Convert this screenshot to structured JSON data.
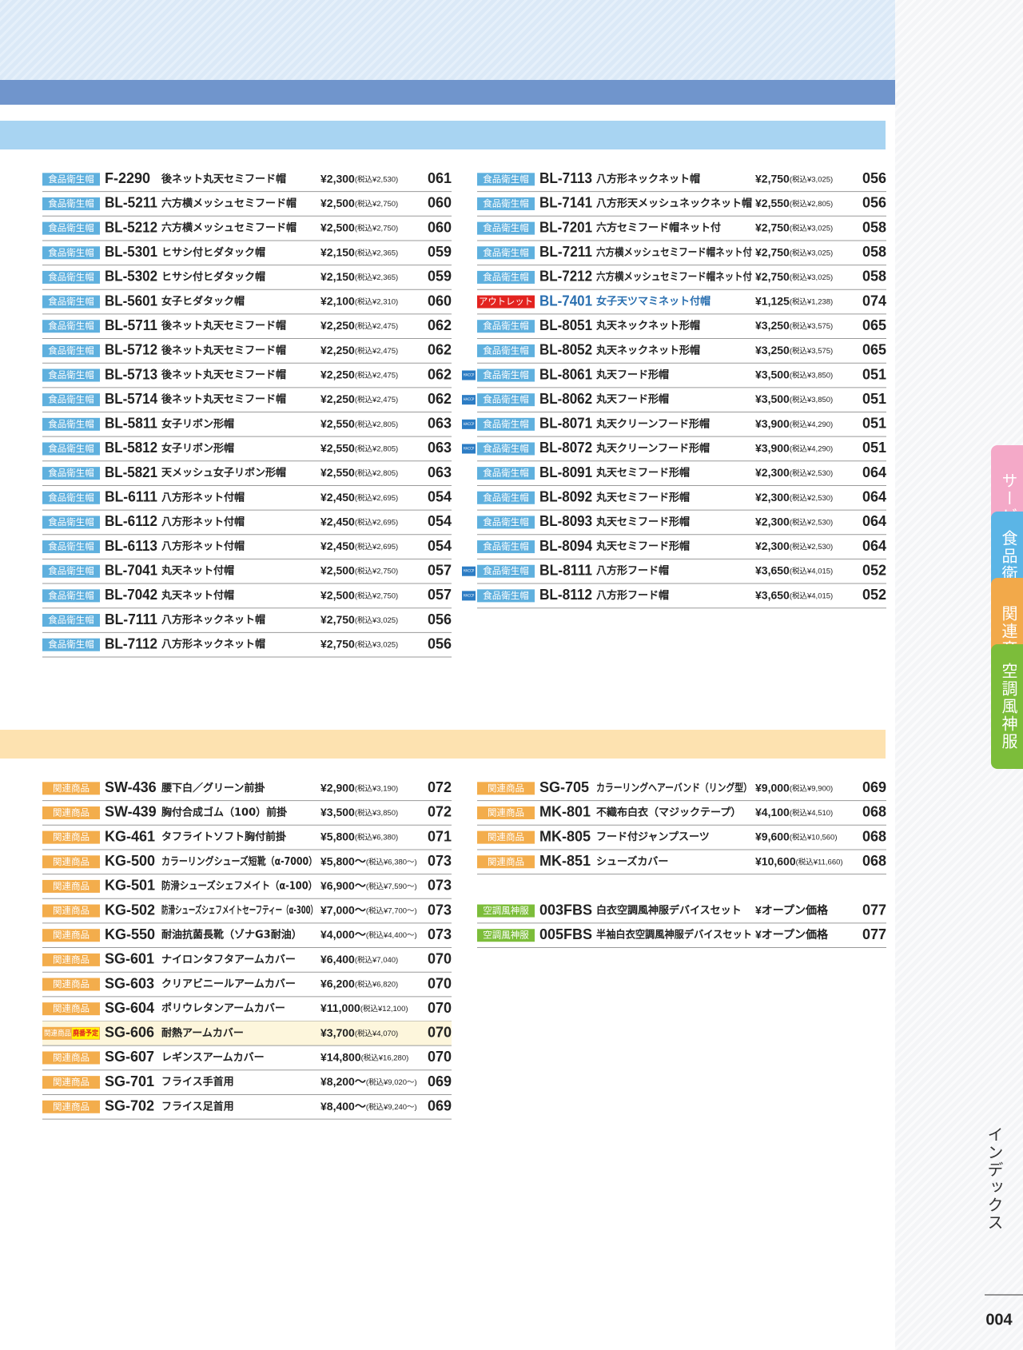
{
  "side_tabs": [
    {
      "label": "サービス",
      "color": "#f4a9c8"
    },
    {
      "label": "食品衛生帽",
      "color": "#5bb5e6"
    },
    {
      "label": "関連商品",
      "color": "#f2a94a"
    },
    {
      "label": "空調風神服",
      "color": "#7cbd3a"
    }
  ],
  "index_label": "インデックス",
  "page_number": "004",
  "sections": [
    {
      "header_color": "#a8d4f2",
      "tag_color": "#5fb0de",
      "columns": [
        [
          [
            {
              "tag": "食品衛生帽",
              "code": "F-2290",
              "name": "後ネット丸天セミフード帽",
              "price": "¥2,300",
              "tax": "(税込¥2,530)",
              "page": "061"
            },
            {
              "tag": "食品衛生帽",
              "code": "BL-5211",
              "name": "六方横メッシュセミフード帽",
              "price": "¥2,500",
              "tax": "(税込¥2,750)",
              "page": "060"
            },
            {
              "tag": "食品衛生帽",
              "code": "BL-5212",
              "name": "六方横メッシュセミフード帽",
              "price": "¥2,500",
              "tax": "(税込¥2,750)",
              "page": "060"
            },
            {
              "tag": "食品衛生帽",
              "code": "BL-5301",
              "name": "ヒサシ付ヒダタック帽",
              "price": "¥2,150",
              "tax": "(税込¥2,365)",
              "page": "059"
            },
            {
              "tag": "食品衛生帽",
              "code": "BL-5302",
              "name": "ヒサシ付ヒダタック帽",
              "price": "¥2,150",
              "tax": "(税込¥2,365)",
              "page": "059"
            },
            {
              "tag": "食品衛生帽",
              "code": "BL-5601",
              "name": "女子ヒダタック帽",
              "price": "¥2,100",
              "tax": "(税込¥2,310)",
              "page": "060"
            },
            {
              "tag": "食品衛生帽",
              "code": "BL-5711",
              "name": "後ネット丸天セミフード帽",
              "price": "¥2,250",
              "tax": "(税込¥2,475)",
              "page": "062"
            },
            {
              "tag": "食品衛生帽",
              "code": "BL-5712",
              "name": "後ネット丸天セミフード帽",
              "price": "¥2,250",
              "tax": "(税込¥2,475)",
              "page": "062"
            },
            {
              "tag": "食品衛生帽",
              "code": "BL-5713",
              "name": "後ネット丸天セミフード帽",
              "price": "¥2,250",
              "tax": "(税込¥2,475)",
              "page": "062"
            },
            {
              "tag": "食品衛生帽",
              "code": "BL-5714",
              "name": "後ネット丸天セミフード帽",
              "price": "¥2,250",
              "tax": "(税込¥2,475)",
              "page": "062"
            },
            {
              "tag": "食品衛生帽",
              "code": "BL-5811",
              "name": "女子リボン形帽",
              "price": "¥2,550",
              "tax": "(税込¥2,805)",
              "page": "063"
            },
            {
              "tag": "食品衛生帽",
              "code": "BL-5812",
              "name": "女子リボン形帽",
              "price": "¥2,550",
              "tax": "(税込¥2,805)",
              "page": "063"
            },
            {
              "tag": "食品衛生帽",
              "code": "BL-5821",
              "name": "天メッシュ女子リボン形帽",
              "price": "¥2,550",
              "tax": "(税込¥2,805)",
              "page": "063"
            },
            {
              "tag": "食品衛生帽",
              "code": "BL-6111",
              "name": "八方形ネット付帽",
              "price": "¥2,450",
              "tax": "(税込¥2,695)",
              "page": "054"
            },
            {
              "tag": "食品衛生帽",
              "code": "BL-6112",
              "name": "八方形ネット付帽",
              "price": "¥2,450",
              "tax": "(税込¥2,695)",
              "page": "054"
            },
            {
              "tag": "食品衛生帽",
              "code": "BL-6113",
              "name": "八方形ネット付帽",
              "price": "¥2,450",
              "tax": "(税込¥2,695)",
              "page": "054"
            },
            {
              "tag": "食品衛生帽",
              "code": "BL-7041",
              "name": "丸天ネット付帽",
              "price": "¥2,500",
              "tax": "(税込¥2,750)",
              "page": "057"
            },
            {
              "tag": "食品衛生帽",
              "code": "BL-7042",
              "name": "丸天ネット付帽",
              "price": "¥2,500",
              "tax": "(税込¥2,750)",
              "page": "057"
            },
            {
              "tag": "食品衛生帽",
              "code": "BL-7111",
              "name": "八方形ネックネット帽",
              "price": "¥2,750",
              "tax": "(税込¥3,025)",
              "page": "056"
            },
            {
              "tag": "食品衛生帽",
              "code": "BL-7112",
              "name": "八方形ネックネット帽",
              "price": "¥2,750",
              "tax": "(税込¥3,025)",
              "page": "056"
            }
          ]
        ],
        [
          [
            {
              "tag": "食品衛生帽",
              "code": "BL-7113",
              "name": "八方形ネックネット帽",
              "price": "¥2,750",
              "tax": "(税込¥3,025)",
              "page": "056"
            },
            {
              "tag": "食品衛生帽",
              "code": "BL-7141",
              "name": "八方形天メッシュネックネット帽",
              "price": "¥2,550",
              "tax": "(税込¥2,805)",
              "page": "056"
            },
            {
              "tag": "食品衛生帽",
              "code": "BL-7201",
              "name": "六方セミフード帽ネット付",
              "price": "¥2,750",
              "tax": "(税込¥3,025)",
              "page": "058"
            },
            {
              "tag": "食品衛生帽",
              "code": "BL-7211",
              "name": "六方横メッシュセミフード帽ネット付",
              "price": "¥2,750",
              "tax": "(税込¥3,025)",
              "page": "058"
            },
            {
              "tag": "食品衛生帽",
              "code": "BL-7212",
              "name": "六方横メッシュセミフード帽ネット付",
              "price": "¥2,750",
              "tax": "(税込¥3,025)",
              "page": "058"
            },
            {
              "tag": "アウトレット",
              "tag_color": "#e3231f",
              "text_color": "#2a6fb0",
              "code": "BL-7401",
              "name": "女子天ツマミネット付帽",
              "price": "¥1,125",
              "tax": "(税込¥1,238)",
              "page": "074"
            },
            {
              "tag": "食品衛生帽",
              "code": "BL-8051",
              "name": "丸天ネックネット形帽",
              "price": "¥3,250",
              "tax": "(税込¥3,575)",
              "page": "065"
            },
            {
              "tag": "食品衛生帽",
              "code": "BL-8052",
              "name": "丸天ネックネット形帽",
              "price": "¥3,250",
              "tax": "(税込¥3,575)",
              "page": "065"
            },
            {
              "badge": "HACCP",
              "tag": "食品衛生帽",
              "code": "BL-8061",
              "name": "丸天フード形帽",
              "price": "¥3,500",
              "tax": "(税込¥3,850)",
              "page": "051"
            },
            {
              "badge": "HACCP",
              "tag": "食品衛生帽",
              "code": "BL-8062",
              "name": "丸天フード形帽",
              "price": "¥3,500",
              "tax": "(税込¥3,850)",
              "page": "051"
            },
            {
              "badge": "HACCP",
              "tag": "食品衛生帽",
              "code": "BL-8071",
              "name": "丸天クリーンフード形帽",
              "price": "¥3,900",
              "tax": "(税込¥4,290)",
              "page": "051"
            },
            {
              "badge": "HACCP",
              "tag": "食品衛生帽",
              "code": "BL-8072",
              "name": "丸天クリーンフード形帽",
              "price": "¥3,900",
              "tax": "(税込¥4,290)",
              "page": "051"
            },
            {
              "tag": "食品衛生帽",
              "code": "BL-8091",
              "name": "丸天セミフード形帽",
              "price": "¥2,300",
              "tax": "(税込¥2,530)",
              "page": "064"
            },
            {
              "tag": "食品衛生帽",
              "code": "BL-8092",
              "name": "丸天セミフード形帽",
              "price": "¥2,300",
              "tax": "(税込¥2,530)",
              "page": "064"
            },
            {
              "tag": "食品衛生帽",
              "code": "BL-8093",
              "name": "丸天セミフード形帽",
              "price": "¥2,300",
              "tax": "(税込¥2,530)",
              "page": "064"
            },
            {
              "tag": "食品衛生帽",
              "code": "BL-8094",
              "name": "丸天セミフード形帽",
              "price": "¥2,300",
              "tax": "(税込¥2,530)",
              "page": "064"
            },
            {
              "badge": "HACCP",
              "tag": "食品衛生帽",
              "code": "BL-8111",
              "name": "八方形フード帽",
              "price": "¥3,650",
              "tax": "(税込¥4,015)",
              "page": "052"
            },
            {
              "badge": "HACCP",
              "tag": "食品衛生帽",
              "code": "BL-8112",
              "name": "八方形フード帽",
              "price": "¥3,650",
              "tax": "(税込¥4,015)",
              "page": "052"
            }
          ]
        ]
      ]
    },
    {
      "header_color": "#fde2b0",
      "tag_color": "#f3ad4c",
      "columns": [
        [
          [
            {
              "tag": "関連商品",
              "code": "SW-436",
              "name": "腰下白／グリーン前掛",
              "price": "¥2,900",
              "tax": "(税込¥3,190)",
              "page": "072"
            },
            {
              "tag": "関連商品",
              "code": "SW-439",
              "name": "胸付合成ゴム（100）前掛",
              "price": "¥3,500",
              "tax": "(税込¥3,850)",
              "page": "072"
            },
            {
              "tag": "関連商品",
              "code": "KG-461",
              "name": "タフライトソフト胸付前掛",
              "price": "¥5,800",
              "tax": "(税込¥6,380)",
              "page": "071"
            },
            {
              "tag": "関連商品",
              "code": "KG-500",
              "name": "カラーリングシューズ短靴（α-7000）",
              "price": "¥5,800～",
              "tax": "(税込¥6,380～)",
              "page": "073"
            },
            {
              "tag": "関連商品",
              "code": "KG-501",
              "name": "防滑シューズシェフメイト（α-100）",
              "price": "¥6,900～",
              "tax": "(税込¥7,590～)",
              "page": "073"
            },
            {
              "tag": "関連商品",
              "code": "KG-502",
              "name": "防滑シューズシェフメイトセーフティー（α-300）",
              "price": "¥7,000～",
              "tax": "(税込¥7,700～)",
              "page": "073"
            },
            {
              "tag": "関連商品",
              "code": "KG-550",
              "name": "耐油抗菌長靴（ゾナG3耐油）",
              "price": "¥4,000～",
              "tax": "(税込¥4,400～)",
              "page": "073"
            },
            {
              "tag": "関連商品",
              "code": "SG-601",
              "name": "ナイロンタフタアームカバー",
              "price": "¥6,400",
              "tax": "(税込¥7,040)",
              "page": "070"
            },
            {
              "tag": "関連商品",
              "code": "SG-603",
              "name": "クリアビニールアームカバー",
              "price": "¥6,200",
              "tax": "(税込¥6,820)",
              "page": "070"
            },
            {
              "tag": "関連商品",
              "code": "SG-604",
              "name": "ポリウレタンアームカバー",
              "price": "¥11,000",
              "tax": "(税込¥12,100)",
              "page": "070"
            },
            {
              "tag": "関連商品",
              "status": "廃番予定",
              "row_color": "#fdf6dc",
              "code": "SG-606",
              "name": "耐熱アームカバー",
              "price": "¥3,700",
              "tax": "(税込¥4,070)",
              "page": "070"
            },
            {
              "tag": "関連商品",
              "code": "SG-607",
              "name": "レギンスアームカバー",
              "price": "¥14,800",
              "tax": "(税込¥16,280)",
              "page": "070"
            },
            {
              "tag": "関連商品",
              "code": "SG-701",
              "name": "フライス手首用",
              "price": "¥8,200～",
              "tax": "(税込¥9,020～)",
              "page": "069"
            },
            {
              "tag": "関連商品",
              "code": "SG-702",
              "name": "フライス足首用",
              "price": "¥8,400～",
              "tax": "(税込¥9,240～)",
              "page": "069"
            }
          ]
        ],
        [
          [
            {
              "tag": "関連商品",
              "code": "SG-705",
              "name": "カラーリングヘアーバンド（リング型）",
              "price": "¥9,000",
              "tax": "(税込¥9,900)",
              "page": "069"
            },
            {
              "tag": "関連商品",
              "code": "MK-801",
              "name": "不織布白衣（マジックテープ）",
              "price": "¥4,100",
              "tax": "(税込¥4,510)",
              "page": "068"
            },
            {
              "tag": "関連商品",
              "code": "MK-805",
              "name": "フード付ジャンプスーツ",
              "price": "¥9,600",
              "tax": "(税込¥10,560)",
              "page": "068"
            },
            {
              "tag": "関連商品",
              "code": "MK-851",
              "name": "シューズカバー",
              "price": "¥10,600",
              "tax": "(税込¥11,660)",
              "page": "068"
            }
          ],
          [
            {
              "tag": "空調風神服",
              "tag_color": "#7cbd3a",
              "code": "003FBS",
              "name": "白衣空調風神服デバイスセット",
              "price": "¥オープン価格",
              "page": "077"
            },
            {
              "tag": "空調風神服",
              "tag_color": "#7cbd3a",
              "code": "005FBS",
              "name": "半袖白衣空調風神服デバイスセット",
              "price": "¥オープン価格",
              "page": "077"
            }
          ]
        ]
      ]
    }
  ]
}
